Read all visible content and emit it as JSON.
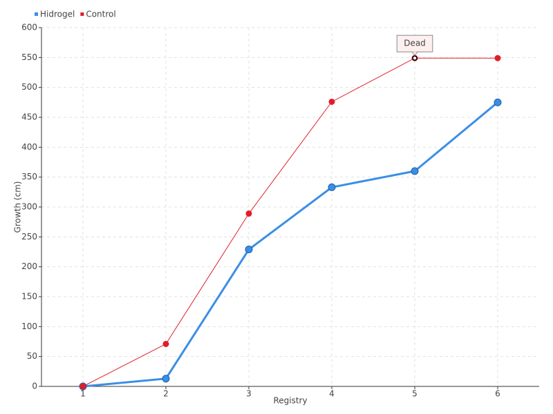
{
  "chart_data": {
    "type": "line",
    "xlabel": "Registry",
    "ylabel": "Growth (cm)",
    "x": [
      1,
      2,
      3,
      4,
      5,
      6
    ],
    "series": [
      {
        "name": "Hidrogel",
        "color": "#3a8ee6",
        "values": [
          0,
          13,
          229,
          333,
          360,
          475
        ]
      },
      {
        "name": "Control",
        "color": "#e01e2a",
        "values": [
          0,
          71,
          289,
          476,
          549,
          549
        ]
      }
    ],
    "xlim": [
      0.5,
      6.5
    ],
    "xticks": [
      1,
      2,
      3,
      4,
      5,
      6
    ],
    "ylim": [
      0,
      600
    ],
    "yticks": [
      0,
      50,
      100,
      150,
      200,
      250,
      300,
      350,
      400,
      450,
      500,
      550,
      600
    ],
    "grid": true,
    "legend": "top-left",
    "annotations": [
      {
        "text": "Dead",
        "series": "Control",
        "x": 5
      }
    ]
  }
}
